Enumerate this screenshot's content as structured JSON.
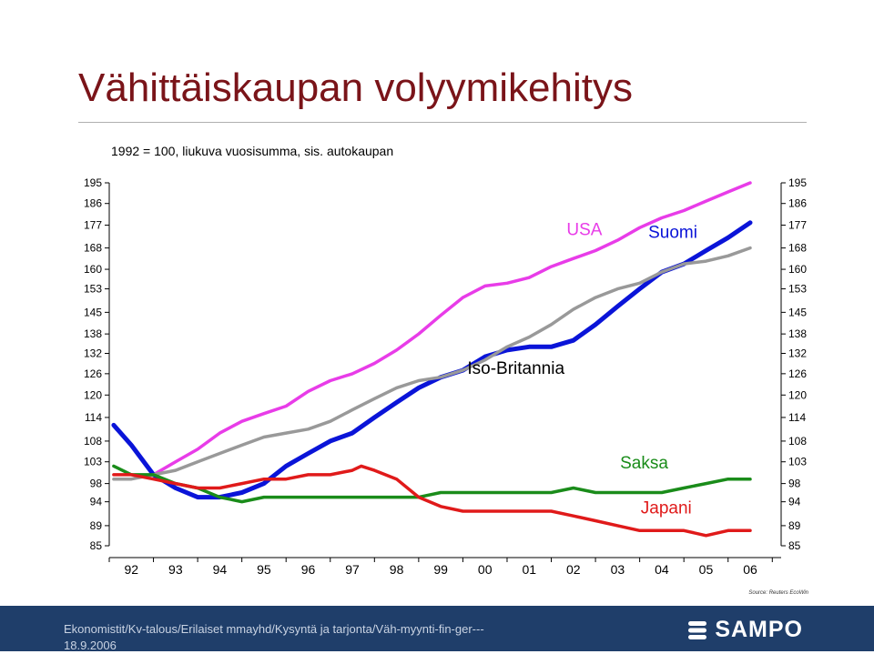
{
  "slide": {
    "title": "Vähittäiskaupan volyymikehitys",
    "subtitle": "1992 = 100, liukuva vuosisumma, sis. autokaupan",
    "source": "Source: Reuters EcoWin",
    "footer_text": "Ekonomistit/Kv-talous/Erilaiset mmayhd/Kysyntä ja tarjonta/Väh-myynti-fin-ger---",
    "footer_date": "18.9.2006",
    "logo_text": "SAMPO"
  },
  "chart_data": {
    "type": "line",
    "title": "Vähittäiskaupan volyymikehitys",
    "subtitle": "1992 = 100, liukuva vuosisumma, sis. autokaupan",
    "xlabel": "",
    "ylabel": "",
    "x_ticks": [
      "92",
      "93",
      "94",
      "95",
      "96",
      "97",
      "98",
      "99",
      "00",
      "01",
      "02",
      "03",
      "04",
      "05",
      "06"
    ],
    "xlim": [
      1991.5,
      2006.7
    ],
    "y_ticks": [
      85,
      89,
      94,
      98,
      103,
      108,
      114,
      120,
      126,
      132,
      138,
      145,
      153,
      160,
      168,
      177,
      186,
      195
    ],
    "y_scale": "log",
    "ylim": [
      85,
      195
    ],
    "both_side_y_axes": true,
    "grid": false,
    "series": [
      {
        "name": "USA",
        "color": "#e83ce8",
        "width": 3.5,
        "x": [
          1992.5,
          1993.0,
          1993.5,
          1994.0,
          1994.5,
          1995.0,
          1995.5,
          1996.0,
          1996.5,
          1997.0,
          1997.5,
          1998.0,
          1998.5,
          1999.0,
          1999.5,
          2000.0,
          2000.5,
          2001.0,
          2001.5,
          2002.0,
          2002.5,
          2003.0,
          2003.5,
          2004.0,
          2004.5,
          2005.0,
          2005.5,
          2006.0
        ],
        "y": [
          100,
          103,
          106,
          110,
          113,
          115,
          117,
          121,
          124,
          126,
          129,
          133,
          138,
          144,
          150,
          154,
          155,
          157,
          161,
          164,
          167,
          171,
          176,
          180,
          183,
          187,
          191,
          195
        ]
      },
      {
        "name": "Suomi",
        "color": "#0a14d8",
        "width": 5,
        "x": [
          1991.6,
          1992.0,
          1992.5,
          1993.0,
          1993.5,
          1994.0,
          1994.5,
          1995.0,
          1995.5,
          1996.0,
          1996.5,
          1997.0,
          1997.5,
          1998.0,
          1998.5,
          1999.0,
          1999.5,
          2000.0,
          2000.5,
          2001.0,
          2001.5,
          2002.0,
          2002.5,
          2003.0,
          2003.5,
          2004.0,
          2004.5,
          2005.0,
          2005.5,
          2006.0
        ],
        "y": [
          112,
          107,
          100,
          97,
          95,
          95,
          96,
          98,
          102,
          105,
          108,
          110,
          114,
          118,
          122,
          125,
          127,
          131,
          133,
          134,
          134,
          136,
          141,
          147,
          153,
          159,
          162,
          167,
          172,
          178
        ]
      },
      {
        "name": "Iso-Britannia",
        "color": "#999999",
        "width": 3.5,
        "x": [
          1991.6,
          1992.0,
          1992.5,
          1993.0,
          1993.5,
          1994.0,
          1994.5,
          1995.0,
          1995.5,
          1996.0,
          1996.5,
          1997.0,
          1997.5,
          1998.0,
          1998.5,
          1999.0,
          1999.5,
          2000.0,
          2000.5,
          2001.0,
          2001.5,
          2002.0,
          2002.5,
          2003.0,
          2003.5,
          2004.0,
          2004.5,
          2005.0,
          2005.5,
          2006.0
        ],
        "y": [
          99,
          99,
          100,
          101,
          103,
          105,
          107,
          109,
          110,
          111,
          113,
          116,
          119,
          122,
          124,
          125,
          127,
          130,
          134,
          137,
          141,
          146,
          150,
          153,
          155,
          159,
          162,
          163,
          165,
          168
        ]
      },
      {
        "name": "Saksa",
        "color": "#1a8c1a",
        "width": 3.5,
        "x": [
          1991.6,
          1992.0,
          1992.5,
          1993.0,
          1993.5,
          1994.0,
          1994.5,
          1995.0,
          1995.5,
          1996.0,
          1996.5,
          1997.0,
          1997.5,
          1998.0,
          1998.5,
          1999.0,
          1999.5,
          2000.0,
          2000.5,
          2001.0,
          2001.5,
          2002.0,
          2002.5,
          2003.0,
          2003.5,
          2004.0,
          2004.5,
          2005.0,
          2005.5,
          2006.0
        ],
        "y": [
          102,
          100,
          100,
          98,
          97,
          95,
          94,
          95,
          95,
          95,
          95,
          95,
          95,
          95,
          95,
          96,
          96,
          96,
          96,
          96,
          96,
          97,
          96,
          96,
          96,
          96,
          97,
          98,
          99,
          99
        ]
      },
      {
        "name": "Japani",
        "color": "#e01a1a",
        "width": 3.5,
        "x": [
          1991.6,
          1992.0,
          1992.5,
          1993.0,
          1993.5,
          1994.0,
          1994.5,
          1995.0,
          1995.5,
          1996.0,
          1996.5,
          1997.0,
          1997.2,
          1997.5,
          1998.0,
          1998.5,
          1999.0,
          1999.5,
          2000.0,
          2000.5,
          2001.0,
          2001.5,
          2002.0,
          2002.5,
          2003.0,
          2003.5,
          2004.0,
          2004.5,
          2005.0,
          2005.5,
          2006.0
        ],
        "y": [
          100,
          100,
          99,
          98,
          97,
          97,
          98,
          99,
          99,
          100,
          100,
          101,
          102,
          101,
          99,
          95,
          93,
          92,
          92,
          92,
          92,
          92,
          91,
          90,
          89,
          88,
          88,
          88,
          87,
          88,
          88
        ]
      }
    ],
    "annotations": [
      {
        "text": "USA",
        "color": "#e83ce8",
        "x": 2002.25,
        "y": 173
      },
      {
        "text": "Suomi",
        "color": "#0a14d8",
        "x": 2004.25,
        "y": 172
      },
      {
        "text": "Iso-Britannia",
        "color": "#000000",
        "x": 2000.7,
        "y": 126
      },
      {
        "text": "Saksa",
        "color": "#1a8c1a",
        "x": 2003.6,
        "y": 101.5
      },
      {
        "text": "Japani",
        "color": "#e01a1a",
        "x": 2004.1,
        "y": 91.5
      }
    ]
  }
}
